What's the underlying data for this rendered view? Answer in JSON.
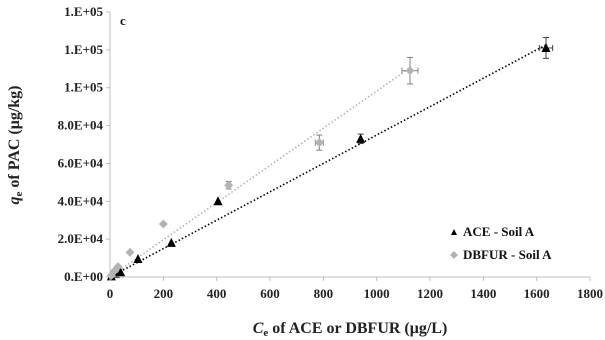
{
  "chart_data": {
    "type": "scatter",
    "panel_label": "c",
    "xlabel_main": "of ACE or DBFUR (μg/L)",
    "xlabel_var": "C",
    "xlabel_sub": "e",
    "ylabel_main": "of PAC (μg/kg)",
    "ylabel_var": "q",
    "ylabel_sub": "e",
    "xlim": [
      0,
      1800
    ],
    "ylim": [
      0,
      140000
    ],
    "x_ticks": [
      {
        "value": 0,
        "label": "0"
      },
      {
        "value": 200,
        "label": "200"
      },
      {
        "value": 400,
        "label": "400"
      },
      {
        "value": 600,
        "label": "600"
      },
      {
        "value": 800,
        "label": "800"
      },
      {
        "value": 1000,
        "label": "1000"
      },
      {
        "value": 1200,
        "label": "1200"
      },
      {
        "value": 1400,
        "label": "1400"
      },
      {
        "value": 1600,
        "label": "1600"
      },
      {
        "value": 1800,
        "label": "1800"
      }
    ],
    "y_ticks": [
      {
        "value": 0,
        "label": "0.E+00"
      },
      {
        "value": 20000,
        "label": "2.0E+04"
      },
      {
        "value": 40000,
        "label": "4.0E+04"
      },
      {
        "value": 60000,
        "label": "6.0E+04"
      },
      {
        "value": 80000,
        "label": "8.0E+04"
      },
      {
        "value": 100000,
        "label": "1.E+05"
      },
      {
        "value": 120000,
        "label": "1.E+05"
      },
      {
        "value": 140000,
        "label": "1.E+05"
      }
    ],
    "legend_position": "bottom-right",
    "series": [
      {
        "name": "ACE - Soil A",
        "marker": "triangle",
        "color": "#000000",
        "trendline": {
          "color": "#000000",
          "x": [
            0,
            1640
          ],
          "y": [
            0,
            123000
          ]
        },
        "points": [
          {
            "x": 5,
            "y": 300,
            "xerr": 0,
            "yerr": 0
          },
          {
            "x": 20,
            "y": 1500,
            "xerr": 0,
            "yerr": 0
          },
          {
            "x": 40,
            "y": 2500,
            "xerr": 0,
            "yerr": 0
          },
          {
            "x": 105,
            "y": 9500,
            "xerr": 0,
            "yerr": 0
          },
          {
            "x": 230,
            "y": 18000,
            "xerr": 0,
            "yerr": 0
          },
          {
            "x": 405,
            "y": 40000,
            "xerr": 0,
            "yerr": 0
          },
          {
            "x": 940,
            "y": 73000,
            "xerr": 0,
            "yerr": 2500
          },
          {
            "x": 1635,
            "y": 121000,
            "xerr": 25,
            "yerr": 5500
          }
        ]
      },
      {
        "name": "DBFUR - Soil A",
        "marker": "diamond",
        "color": "#b3b3b3",
        "trendline": {
          "color": "#b3b3b3",
          "x": [
            0,
            1130
          ],
          "y": [
            0,
            111000
          ]
        },
        "points": [
          {
            "x": 5,
            "y": 800,
            "xerr": 0,
            "yerr": 0
          },
          {
            "x": 15,
            "y": 3000,
            "xerr": 0,
            "yerr": 0
          },
          {
            "x": 30,
            "y": 5500,
            "xerr": 0,
            "yerr": 0
          },
          {
            "x": 75,
            "y": 13000,
            "xerr": 0,
            "yerr": 0
          },
          {
            "x": 200,
            "y": 28000,
            "xerr": 0,
            "yerr": 0
          },
          {
            "x": 445,
            "y": 48500,
            "xerr": 0,
            "yerr": 2000
          },
          {
            "x": 785,
            "y": 71000,
            "xerr": 15,
            "yerr": 4000
          },
          {
            "x": 1125,
            "y": 109000,
            "xerr": 30,
            "yerr": 7000
          }
        ]
      }
    ]
  }
}
